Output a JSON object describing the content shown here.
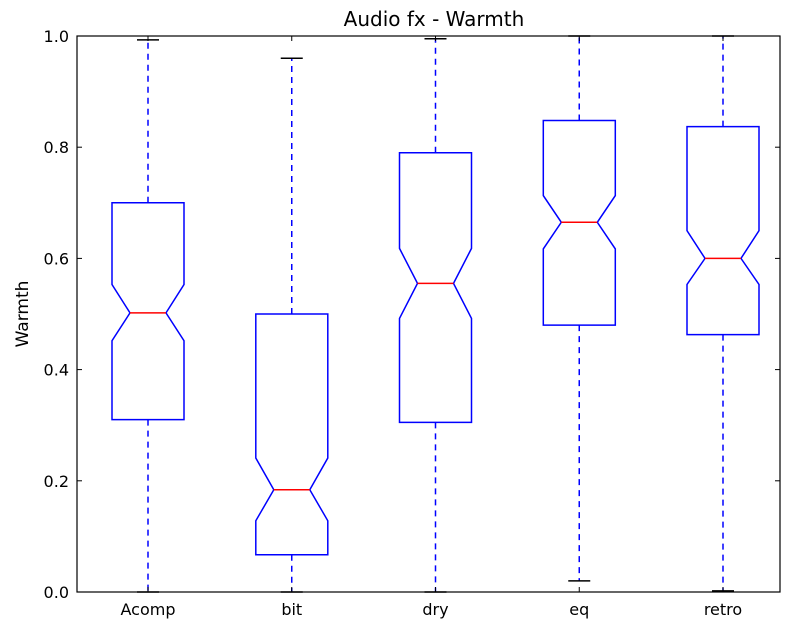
{
  "chart_data": {
    "type": "boxplot",
    "title": "Audio fx - Warmth",
    "xlabel": "",
    "ylabel": "Warmth",
    "ylim": [
      0.0,
      1.0
    ],
    "yticks": [
      "0.0",
      "0.2",
      "0.4",
      "0.6",
      "0.8",
      "1.0"
    ],
    "categories": [
      "Acomp",
      "bit",
      "dry",
      "eq",
      "retro"
    ],
    "notched": true,
    "boxes": [
      {
        "label": "Acomp",
        "whisker_low": 0.0,
        "q1": 0.31,
        "notch_low": 0.452,
        "median": 0.502,
        "notch_high": 0.553,
        "q3": 0.7,
        "whisker_high": 0.993
      },
      {
        "label": "bit",
        "whisker_low": 0.0,
        "q1": 0.067,
        "notch_low": 0.128,
        "median": 0.184,
        "notch_high": 0.241,
        "q3": 0.5,
        "whisker_high": 0.96
      },
      {
        "label": "dry",
        "whisker_low": 0.0,
        "q1": 0.305,
        "notch_low": 0.492,
        "median": 0.555,
        "notch_high": 0.618,
        "q3": 0.79,
        "whisker_high": 0.995
      },
      {
        "label": "eq",
        "whisker_low": 0.02,
        "q1": 0.48,
        "notch_low": 0.617,
        "median": 0.665,
        "notch_high": 0.713,
        "q3": 0.848,
        "whisker_high": 1.0
      },
      {
        "label": "retro",
        "whisker_low": 0.002,
        "q1": 0.463,
        "notch_low": 0.553,
        "median": 0.6,
        "notch_high": 0.65,
        "q3": 0.837,
        "whisker_high": 1.0
      }
    ],
    "grid": false,
    "colors": {
      "box": "#0000ff",
      "whisker": "#0000ff",
      "median": "#ff0000",
      "cap": "#000000",
      "axes": "#000000"
    }
  }
}
